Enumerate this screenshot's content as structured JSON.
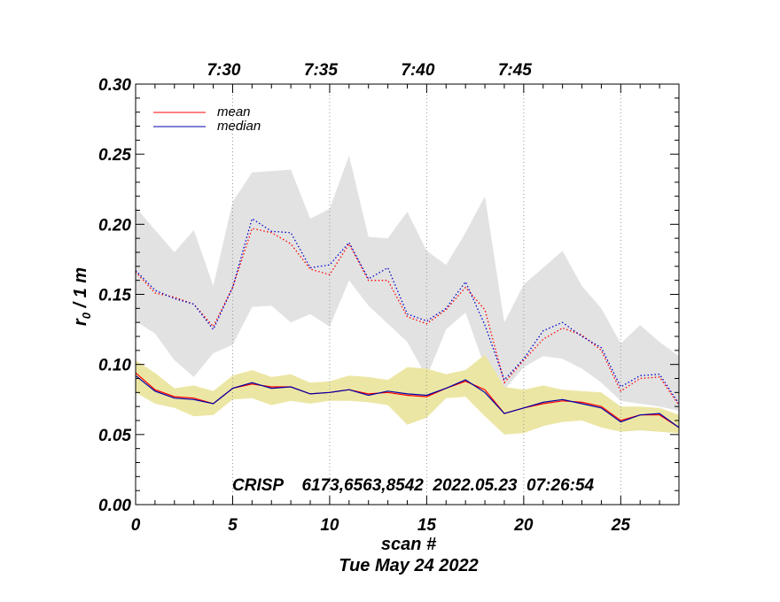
{
  "chart_data": {
    "type": "line",
    "title": "",
    "xlabel": "scan #",
    "ylabel_main": "r",
    "ylabel_sub": "0",
    "ylabel_rest": " / 1 m",
    "date_label": "Tue May 24 2022",
    "annotation": "CRISP    6173,6563,8542  2022.05.23  07:26:54",
    "xlim": [
      0,
      28
    ],
    "ylim": [
      0.0,
      0.3
    ],
    "x_ticks": [
      {
        "value": 0,
        "label": "0"
      },
      {
        "value": 5,
        "label": "5"
      },
      {
        "value": 10,
        "label": "10"
      },
      {
        "value": 15,
        "label": "15"
      },
      {
        "value": 20,
        "label": "20"
      },
      {
        "value": 25,
        "label": "25"
      }
    ],
    "y_ticks": [
      {
        "value": 0.0,
        "label": "0.00"
      },
      {
        "value": 0.05,
        "label": "0.05"
      },
      {
        "value": 0.1,
        "label": "0.10"
      },
      {
        "value": 0.15,
        "label": "0.15"
      },
      {
        "value": 0.2,
        "label": "0.20"
      },
      {
        "value": 0.25,
        "label": "0.25"
      },
      {
        "value": 0.3,
        "label": "0.30"
      }
    ],
    "time_ticks": [
      {
        "x": 5,
        "label": "7:30"
      },
      {
        "x": 10,
        "label": "7:35"
      },
      {
        "x": 15,
        "label": "7:40"
      },
      {
        "x": 20,
        "label": "7:45"
      }
    ],
    "time_tick_positions": [
      5,
      10,
      15,
      20,
      25
    ],
    "legend": {
      "position": "top-left",
      "entries": [
        {
          "name": "mean",
          "color": "#ff0000"
        },
        {
          "name": "median",
          "color": "#0000aa"
        }
      ]
    },
    "x": [
      0,
      1,
      2,
      3,
      4,
      5,
      6,
      7,
      8,
      9,
      10,
      11,
      12,
      13,
      14,
      15,
      16,
      17,
      18,
      19,
      20,
      21,
      22,
      23,
      24,
      25,
      26,
      27,
      28
    ],
    "series": [
      {
        "name": "upper band high",
        "kind": "band_top_gray",
        "values": [
          0.212,
          0.196,
          0.18,
          0.196,
          0.156,
          0.216,
          0.237,
          0.238,
          0.239,
          0.204,
          0.211,
          0.249,
          0.191,
          0.19,
          0.209,
          0.181,
          0.171,
          0.194,
          0.22,
          0.13,
          0.157,
          0.169,
          0.181,
          0.156,
          0.14,
          0.115,
          0.128,
          0.116,
          0.106
        ]
      },
      {
        "name": "upper band low",
        "kind": "band_bottom_gray",
        "values": [
          0.131,
          0.122,
          0.103,
          0.091,
          0.108,
          0.114,
          0.141,
          0.142,
          0.13,
          0.136,
          0.127,
          0.16,
          0.142,
          0.129,
          0.116,
          0.091,
          0.125,
          0.137,
          0.098,
          0.082,
          0.098,
          0.106,
          0.104,
          0.097,
          0.087,
          0.074,
          0.072,
          0.07,
          0.067
        ]
      },
      {
        "name": "lower band high",
        "kind": "band_top_yellow",
        "values": [
          0.103,
          0.094,
          0.083,
          0.085,
          0.081,
          0.092,
          0.096,
          0.091,
          0.093,
          0.087,
          0.088,
          0.092,
          0.091,
          0.089,
          0.098,
          0.097,
          0.093,
          0.096,
          0.107,
          0.084,
          0.082,
          0.085,
          0.082,
          0.081,
          0.08,
          0.07,
          0.07,
          0.069,
          0.064
        ]
      },
      {
        "name": "lower band low",
        "kind": "band_bottom_yellow",
        "values": [
          0.08,
          0.072,
          0.069,
          0.063,
          0.064,
          0.075,
          0.076,
          0.071,
          0.074,
          0.072,
          0.074,
          0.074,
          0.073,
          0.071,
          0.057,
          0.062,
          0.076,
          0.077,
          0.063,
          0.05,
          0.051,
          0.056,
          0.059,
          0.06,
          0.055,
          0.052,
          0.053,
          0.052,
          0.051
        ]
      },
      {
        "name": "mean (upper)",
        "color": "#ff0000",
        "style": "dotted",
        "values": [
          0.166,
          0.151,
          0.148,
          0.143,
          0.127,
          0.155,
          0.197,
          0.194,
          0.186,
          0.168,
          0.164,
          0.186,
          0.16,
          0.16,
          0.134,
          0.129,
          0.139,
          0.155,
          0.139,
          0.087,
          0.103,
          0.118,
          0.126,
          0.121,
          0.11,
          0.081,
          0.09,
          0.091,
          0.071
        ]
      },
      {
        "name": "median (upper)",
        "color": "#0000cc",
        "style": "dotted",
        "values": [
          0.167,
          0.153,
          0.147,
          0.143,
          0.125,
          0.155,
          0.204,
          0.195,
          0.194,
          0.169,
          0.171,
          0.187,
          0.161,
          0.169,
          0.136,
          0.131,
          0.14,
          0.159,
          0.128,
          0.089,
          0.104,
          0.124,
          0.13,
          0.12,
          0.112,
          0.084,
          0.092,
          0.093,
          0.072
        ]
      },
      {
        "name": "mean",
        "color": "#ff0000",
        "style": "solid",
        "values": [
          0.094,
          0.082,
          0.077,
          0.076,
          0.072,
          0.083,
          0.086,
          0.084,
          0.084,
          0.079,
          0.08,
          0.082,
          0.079,
          0.08,
          0.078,
          0.077,
          0.083,
          0.088,
          0.082,
          0.065,
          0.069,
          0.072,
          0.074,
          0.073,
          0.07,
          0.06,
          0.064,
          0.064,
          0.055
        ]
      },
      {
        "name": "median",
        "color": "#0000aa",
        "style": "solid",
        "values": [
          0.092,
          0.081,
          0.076,
          0.075,
          0.072,
          0.083,
          0.087,
          0.083,
          0.084,
          0.079,
          0.08,
          0.082,
          0.078,
          0.081,
          0.079,
          0.078,
          0.083,
          0.089,
          0.08,
          0.065,
          0.069,
          0.073,
          0.075,
          0.072,
          0.069,
          0.059,
          0.064,
          0.065,
          0.055
        ]
      }
    ],
    "colors": {
      "gray_band": "#e2e2e2",
      "yellow_band": "#ece6a4",
      "frame": "#000000",
      "gridline": "#999999"
    }
  }
}
